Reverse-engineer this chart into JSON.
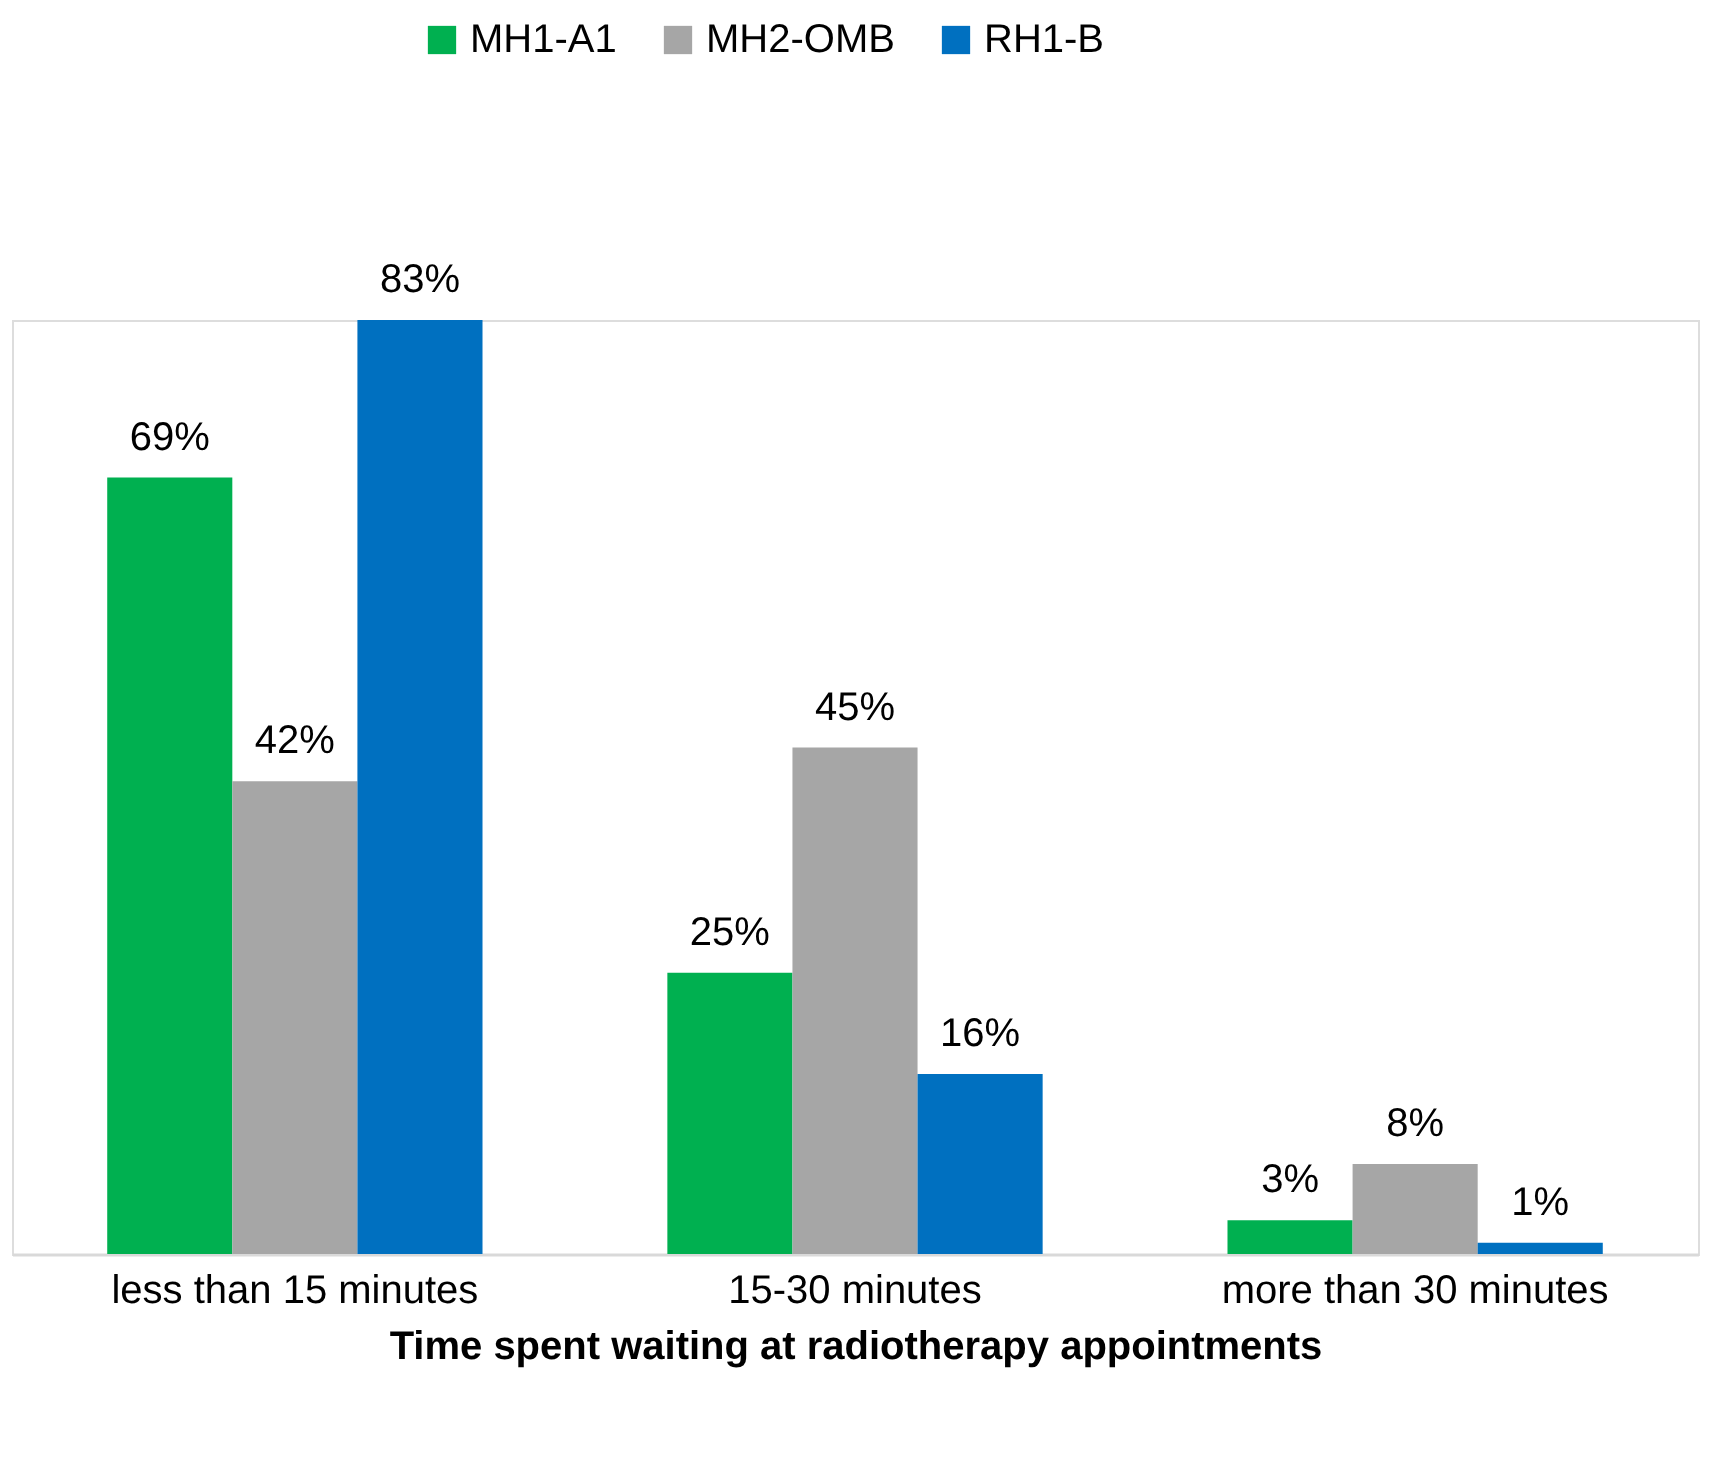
{
  "chart_data": {
    "type": "bar",
    "xlabel": "Time spent waiting at radiotherapy appointments",
    "categories": [
      "less than 15 minutes",
      "15-30 minutes",
      "more than 30 minutes"
    ],
    "series": [
      {
        "name": "MH1-A1",
        "color": "#00b050",
        "values": [
          69,
          25,
          3
        ],
        "value_labels": [
          "69%",
          "25%",
          "3%"
        ]
      },
      {
        "name": "MH2-OMB",
        "color": "#a6a6a6",
        "values": [
          42,
          45,
          8
        ],
        "value_labels": [
          "42%",
          "45%",
          "8%"
        ]
      },
      {
        "name": "RH1-B",
        "color": "#0070c0",
        "values": [
          83,
          16,
          1
        ],
        "value_labels": [
          "83%",
          "16%",
          "1%"
        ]
      }
    ],
    "legend": "top",
    "grid": false,
    "tick_labels": "x"
  }
}
